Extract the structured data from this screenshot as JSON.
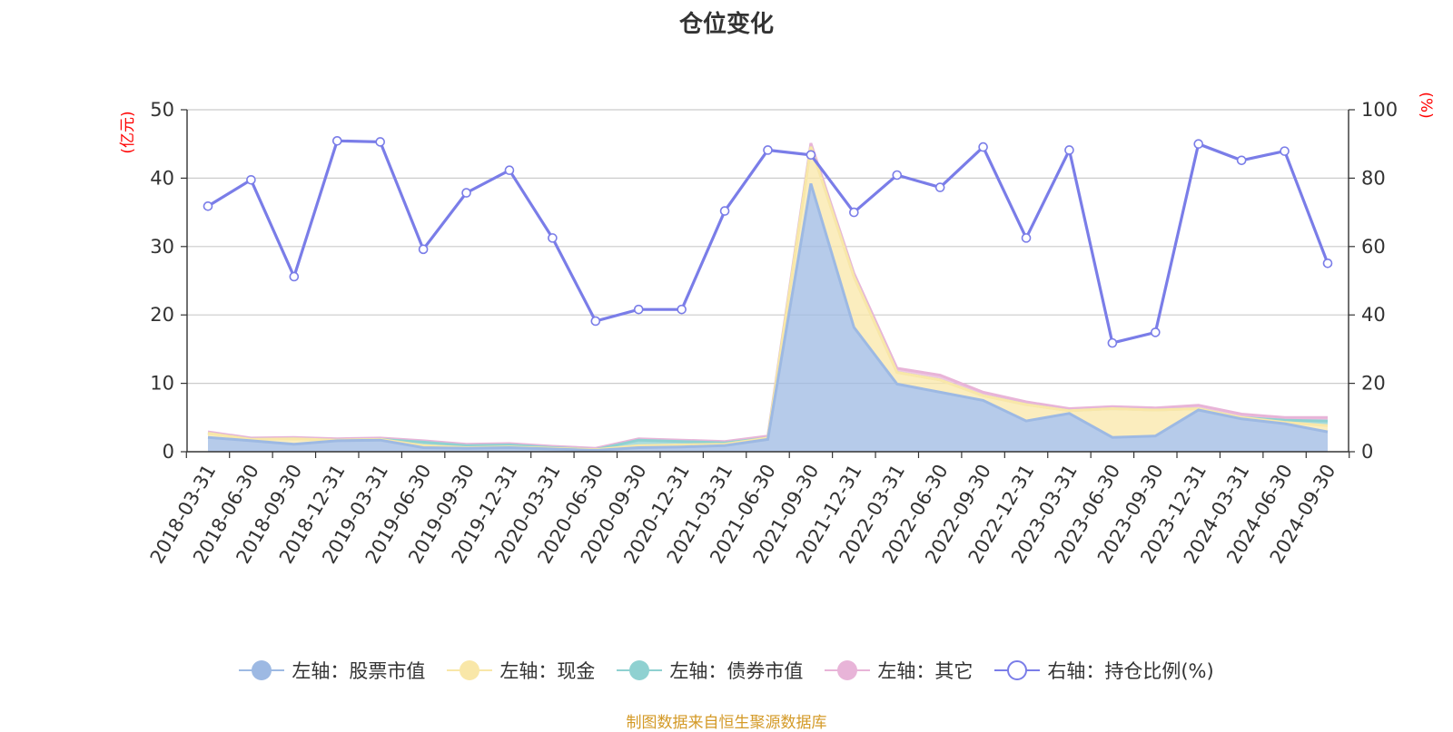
{
  "chart_data": {
    "type": "area",
    "title": "仓位变化",
    "left_unit": "(亿元)",
    "right_unit": "(%)",
    "ylim_left": [
      0,
      50
    ],
    "ylim_right": [
      0,
      100
    ],
    "left_ticks": [
      "0",
      "10",
      "20",
      "30",
      "40",
      "50"
    ],
    "right_ticks": [
      "0",
      "20",
      "40",
      "60",
      "80",
      "100"
    ],
    "categories": [
      "2018-03-31",
      "2018-06-30",
      "2018-09-30",
      "2018-12-31",
      "2019-03-31",
      "2019-06-30",
      "2019-09-30",
      "2019-12-31",
      "2020-03-31",
      "2020-06-30",
      "2020-09-30",
      "2020-12-31",
      "2021-03-31",
      "2021-06-30",
      "2021-09-30",
      "2021-12-31",
      "2022-03-31",
      "2022-06-30",
      "2022-09-30",
      "2022-12-31",
      "2023-03-31",
      "2023-06-30",
      "2023-09-30",
      "2023-12-31",
      "2024-03-31",
      "2024-06-30",
      "2024-09-30"
    ],
    "series": [
      {
        "name": "左轴：股票市值",
        "axis": "left",
        "stacked": true,
        "color": "#9db9e3",
        "values": [
          2.1,
          1.6,
          1.1,
          1.6,
          1.7,
          0.6,
          0.5,
          0.6,
          0.4,
          0.2,
          0.6,
          0.7,
          0.9,
          1.8,
          39.2,
          18.2,
          9.9,
          8.7,
          7.5,
          4.5,
          5.6,
          2.1,
          2.3,
          6.1,
          4.8,
          4.1,
          2.9
        ]
      },
      {
        "name": "左轴：现金",
        "axis": "left",
        "stacked": true,
        "color": "#f9e7a8",
        "values": [
          0.6,
          0.2,
          0.8,
          0.1,
          0.1,
          0.3,
          0.1,
          0.1,
          0.1,
          0.1,
          0.3,
          0.3,
          0.2,
          0.2,
          5.4,
          7.4,
          1.7,
          1.8,
          0.7,
          2.4,
          0.4,
          4.2,
          3.8,
          0.2,
          0.2,
          0.2,
          0.9
        ]
      },
      {
        "name": "左轴：债券市值",
        "axis": "left",
        "stacked": true,
        "color": "#8fd1d1",
        "values": [
          0.0,
          0.0,
          0.0,
          0.0,
          0.0,
          0.5,
          0.3,
          0.3,
          0.1,
          0.0,
          0.8,
          0.5,
          0.2,
          0.0,
          0.0,
          0.0,
          0.0,
          0.0,
          0.0,
          0.0,
          0.0,
          0.0,
          0.0,
          0.0,
          0.0,
          0.3,
          0.7
        ]
      },
      {
        "name": "左轴：其它",
        "axis": "left",
        "stacked": true,
        "color": "#e8b4d8",
        "values": [
          0.2,
          0.2,
          0.2,
          0.2,
          0.2,
          0.2,
          0.2,
          0.2,
          0.2,
          0.2,
          0.2,
          0.2,
          0.2,
          0.3,
          0.5,
          0.5,
          0.6,
          0.7,
          0.5,
          0.4,
          0.3,
          0.3,
          0.3,
          0.5,
          0.5,
          0.4,
          0.5
        ]
      },
      {
        "name": "右轴：持仓比例(%)",
        "axis": "right",
        "stacked": false,
        "color": "#7a7de8",
        "values": [
          71.8,
          79.5,
          51.2,
          90.9,
          90.6,
          59.2,
          75.7,
          82.3,
          62.5,
          38.2,
          41.6,
          41.6,
          70.4,
          88.2,
          86.8,
          70.0,
          80.9,
          77.3,
          89.1,
          62.5,
          88.2,
          31.8,
          34.9,
          90.0,
          85.2,
          87.9,
          55.1
        ]
      }
    ],
    "grid": true,
    "legend_position": "bottom"
  },
  "source_note": "制图数据来自恒生聚源数据库"
}
